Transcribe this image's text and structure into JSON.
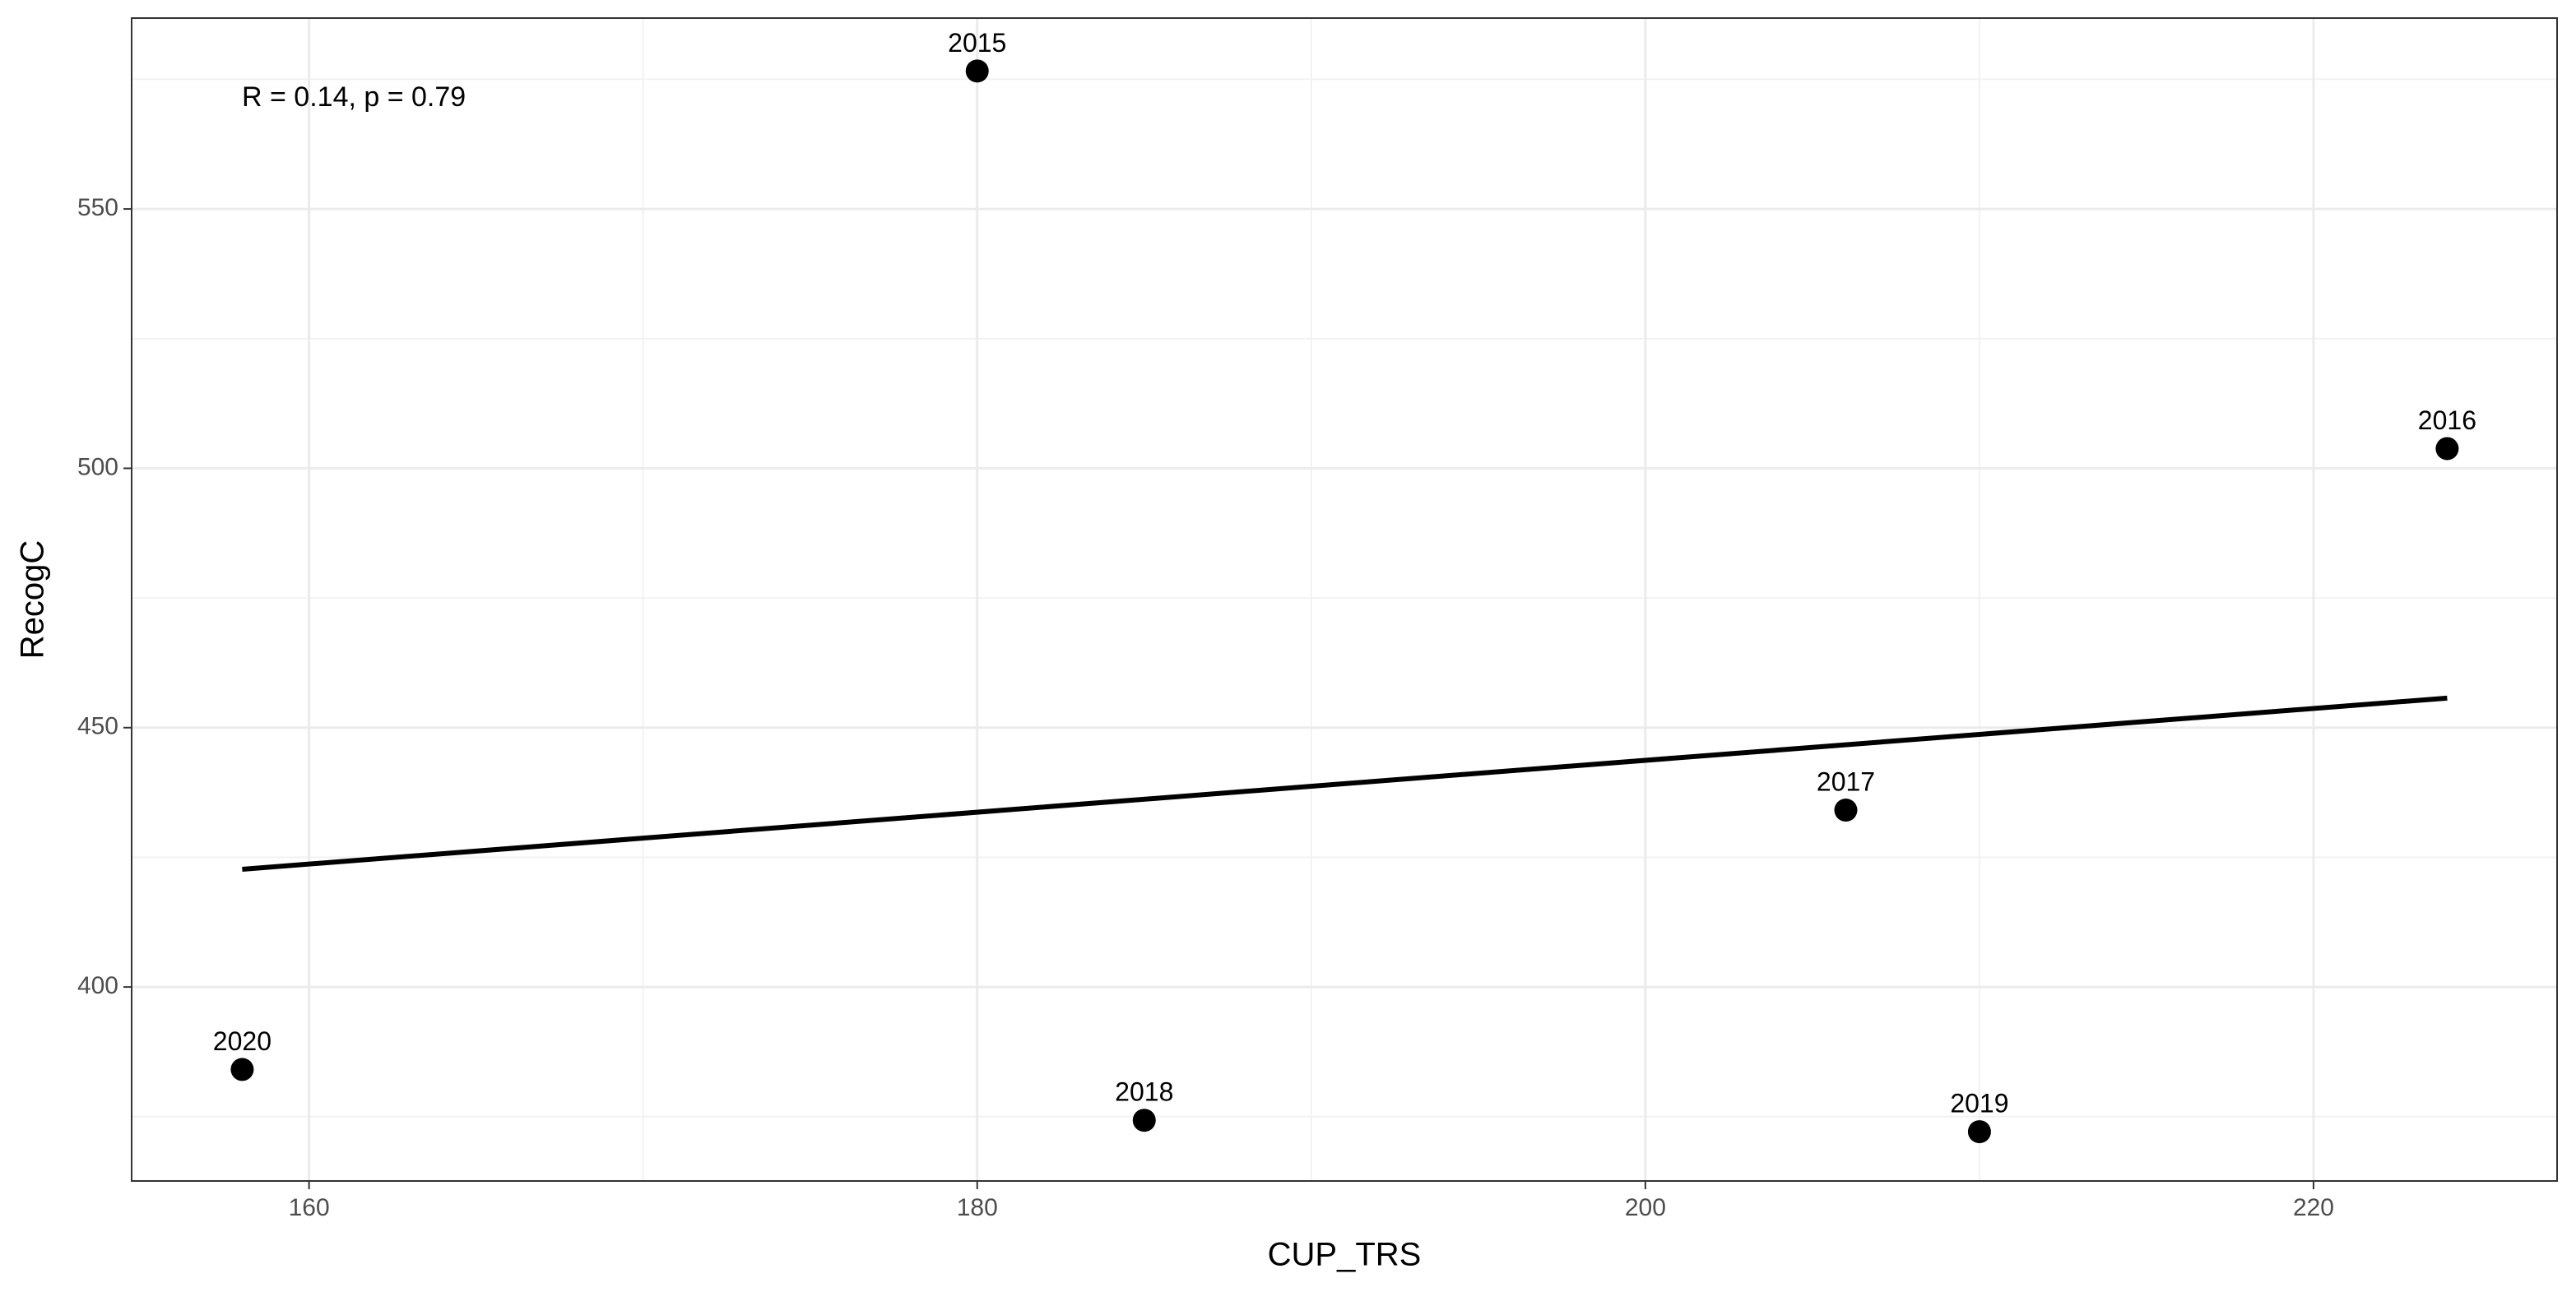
{
  "chart_data": {
    "type": "scatter",
    "x_label": "CUP_TRS",
    "y_label": "RecogC",
    "annotation": "R = 0.14, p = 0.79",
    "series": [
      {
        "color": "#000000",
        "x": [
          180,
          224,
          206,
          185,
          210,
          158
        ],
        "values": [
          576.6,
          503.8,
          434.1,
          374.3,
          372.1,
          384.1
        ],
        "labels": [
          "2015",
          "2016",
          "2017",
          "2018",
          "2019",
          "2020"
        ]
      }
    ],
    "fit_line": {
      "x": [
        158,
        224
      ],
      "y": [
        422.7,
        455.7
      ],
      "color": "#000000"
    },
    "xlim": [
      154.69,
      227.29
    ],
    "ylim": [
      362.6,
      586.8
    ],
    "xticks": [
      160,
      180,
      200,
      220
    ],
    "yticks": [
      400,
      450,
      500,
      550
    ],
    "minor_xticks": [
      170,
      190,
      210
    ],
    "minor_yticks": [
      375,
      425,
      475,
      525,
      575
    ],
    "grid": true
  }
}
